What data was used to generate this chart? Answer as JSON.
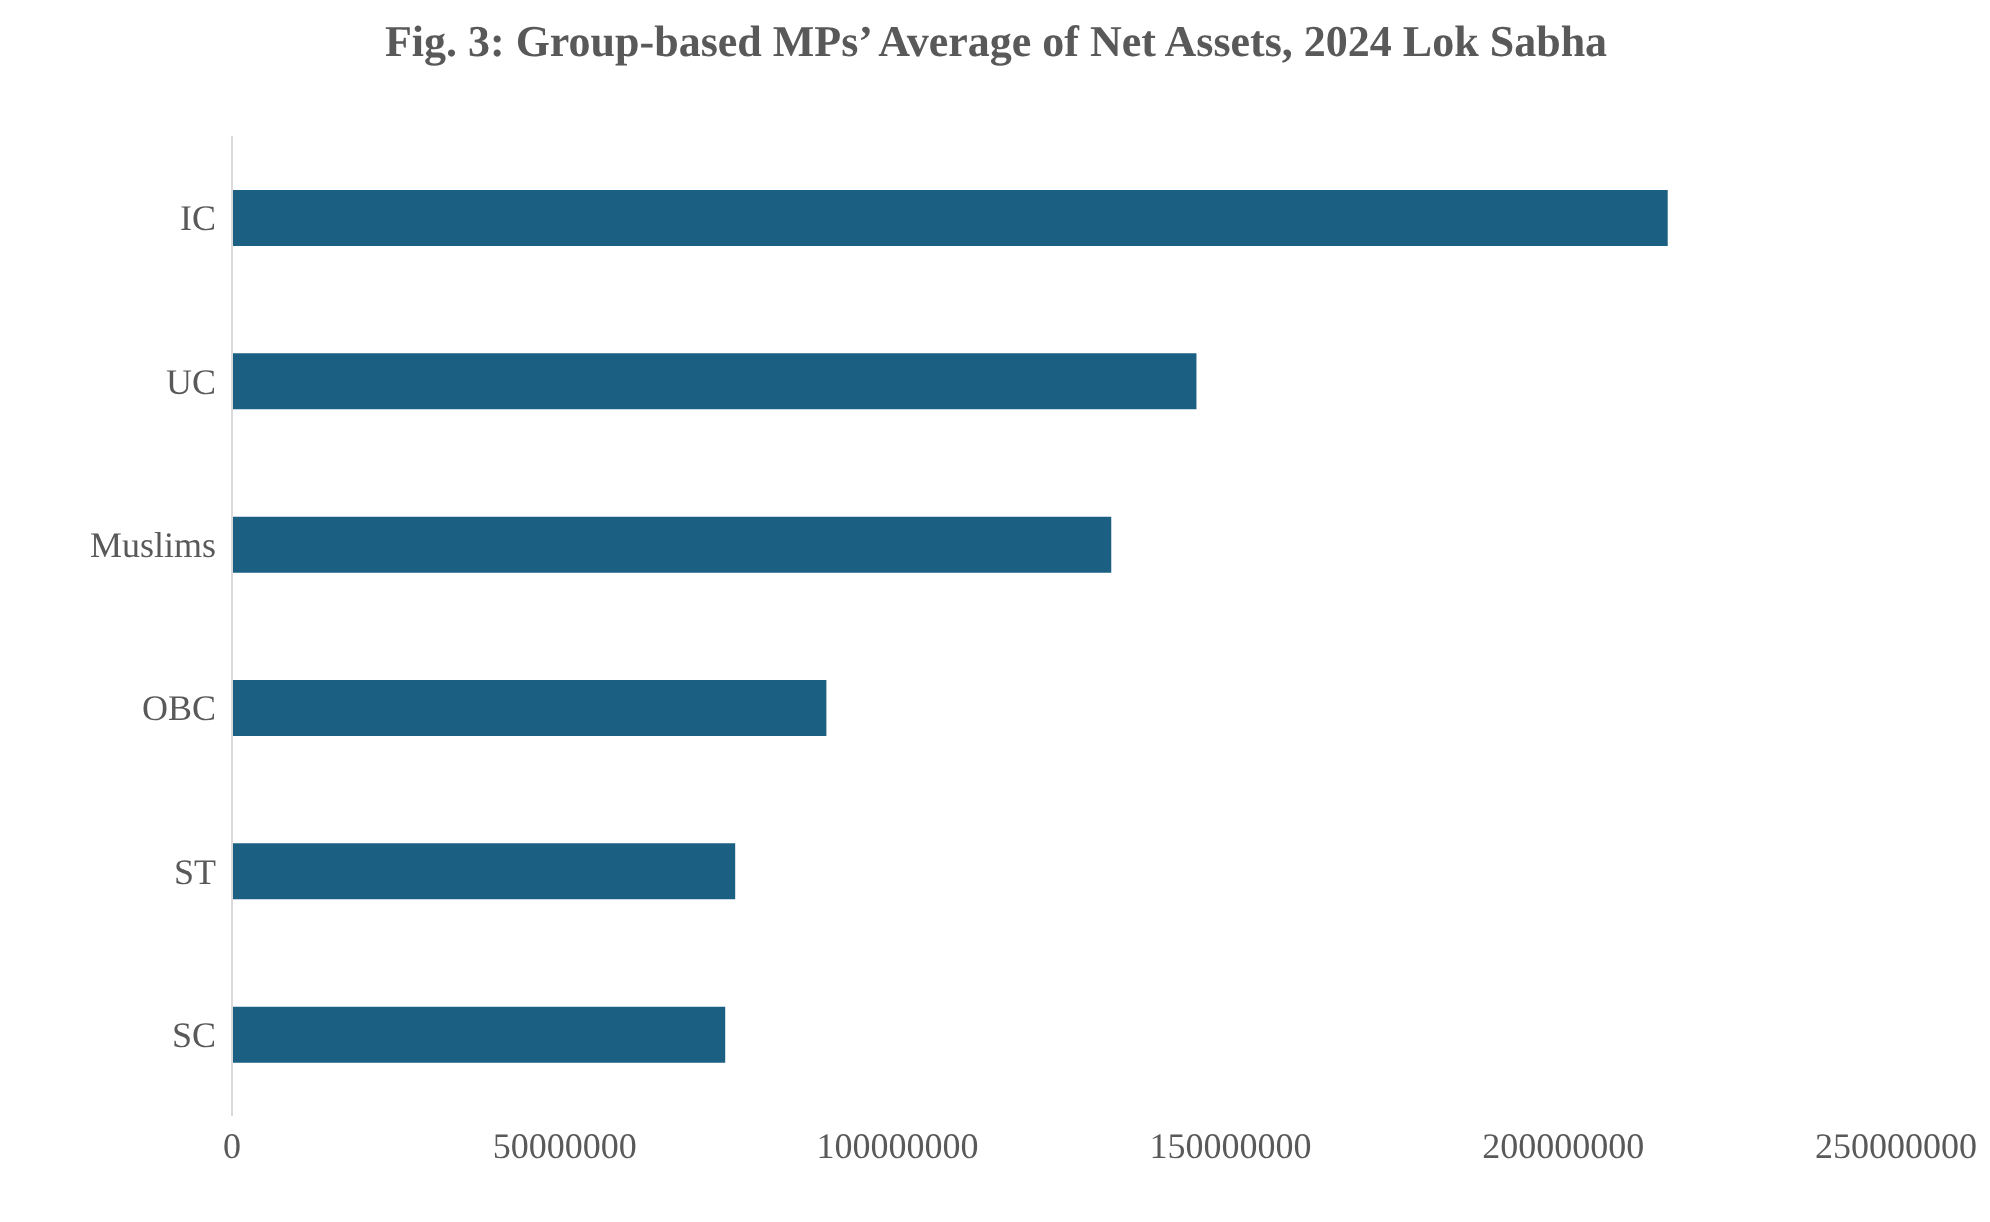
{
  "chart_data": {
    "type": "bar",
    "orientation": "horizontal",
    "title": "Fig. 3: Group-based MPs’ Average of Net Assets, 2024 Lok Sabha",
    "categories": [
      "IC",
      "UC",
      "Muslims",
      "OBC",
      "ST",
      "SC"
    ],
    "values": [
      215700000,
      144900000,
      132100000,
      89300000,
      75600000,
      74100000
    ],
    "color": "#1b5f82",
    "xlim": [
      0,
      250000000
    ],
    "xticks": [
      0,
      50000000,
      100000000,
      150000000,
      200000000,
      250000000
    ],
    "grid": false,
    "legend": false
  }
}
